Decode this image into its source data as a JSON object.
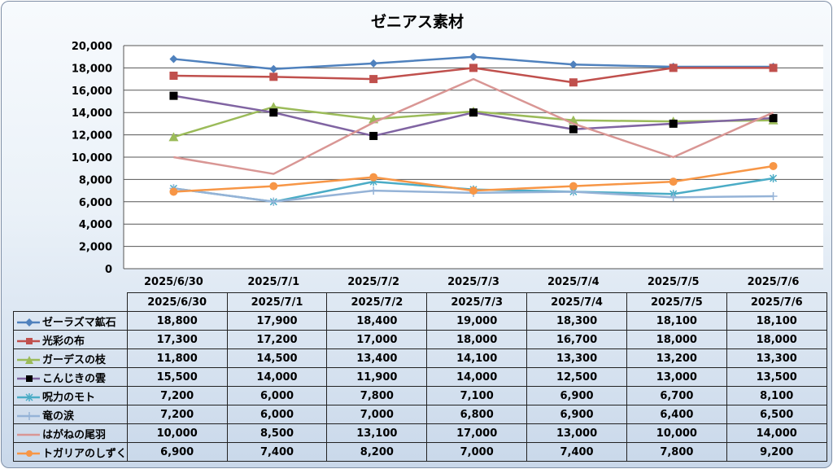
{
  "chart_data": {
    "type": "line",
    "title": "ゼニアス素材",
    "categories": [
      "2025/6/30",
      "2025/7/1",
      "2025/7/2",
      "2025/7/3",
      "2025/7/4",
      "2025/7/5",
      "2025/7/6"
    ],
    "ylim": [
      0,
      20000
    ],
    "yticks": [
      "20,000",
      "18,000",
      "16,000",
      "14,000",
      "12,000",
      "10,000",
      "8,000",
      "6,000",
      "4,000",
      "2,000",
      "0"
    ],
    "ytick_values": [
      20000,
      18000,
      16000,
      14000,
      12000,
      10000,
      8000,
      6000,
      4000,
      2000,
      0
    ],
    "grid": true,
    "legend": "data-table",
    "series": [
      {
        "name": "ゼーラズマ鉱石",
        "color": "#4f81bd",
        "marker": "diamond",
        "values": [
          18800,
          17900,
          18400,
          19000,
          18300,
          18100,
          18100
        ],
        "labels": [
          "18,800",
          "17,900",
          "18,400",
          "19,000",
          "18,300",
          "18,100",
          "18,100"
        ]
      },
      {
        "name": "光彩の布",
        "color": "#c0504d",
        "marker": "square",
        "values": [
          17300,
          17200,
          17000,
          18000,
          16700,
          18000,
          18000
        ],
        "labels": [
          "17,300",
          "17,200",
          "17,000",
          "18,000",
          "16,700",
          "18,000",
          "18,000"
        ]
      },
      {
        "name": "ガーデスの枝",
        "color": "#9bbb59",
        "marker": "triangle",
        "values": [
          11800,
          14500,
          13400,
          14100,
          13300,
          13200,
          13300
        ],
        "labels": [
          "11,800",
          "14,500",
          "13,400",
          "14,100",
          "13,300",
          "13,200",
          "13,300"
        ]
      },
      {
        "name": "こんじきの雲",
        "color": "#8064a2",
        "marker": "blacksquare",
        "values": [
          15500,
          14000,
          11900,
          14000,
          12500,
          13000,
          13500
        ],
        "labels": [
          "15,500",
          "14,000",
          "11,900",
          "14,000",
          "12,500",
          "13,000",
          "13,500"
        ]
      },
      {
        "name": "呪力のモト",
        "color": "#4bacc6",
        "marker": "star",
        "values": [
          7200,
          6000,
          7800,
          7100,
          6900,
          6700,
          8100
        ],
        "labels": [
          "7,200",
          "6,000",
          "7,800",
          "7,100",
          "6,900",
          "6,700",
          "8,100"
        ]
      },
      {
        "name": "竜の涙",
        "color": "#95b3d7",
        "marker": "plus",
        "values": [
          7200,
          6000,
          7000,
          6800,
          6900,
          6400,
          6500
        ],
        "labels": [
          "7,200",
          "6,000",
          "7,000",
          "6,800",
          "6,900",
          "6,400",
          "6,500"
        ]
      },
      {
        "name": "はがねの尾羽",
        "color": "#d99694",
        "marker": "none",
        "values": [
          10000,
          8500,
          13100,
          17000,
          13000,
          10000,
          14000
        ],
        "labels": [
          "10,000",
          "8,500",
          "13,100",
          "17,000",
          "13,000",
          "10,000",
          "14,000"
        ]
      },
      {
        "name": "トガリアのしずく",
        "color": "#f79646",
        "marker": "circle",
        "values": [
          6900,
          7400,
          8200,
          7000,
          7400,
          7800,
          9200
        ],
        "labels": [
          "6,900",
          "7,400",
          "8,200",
          "7,000",
          "7,400",
          "7,800",
          "9,200"
        ]
      }
    ]
  }
}
